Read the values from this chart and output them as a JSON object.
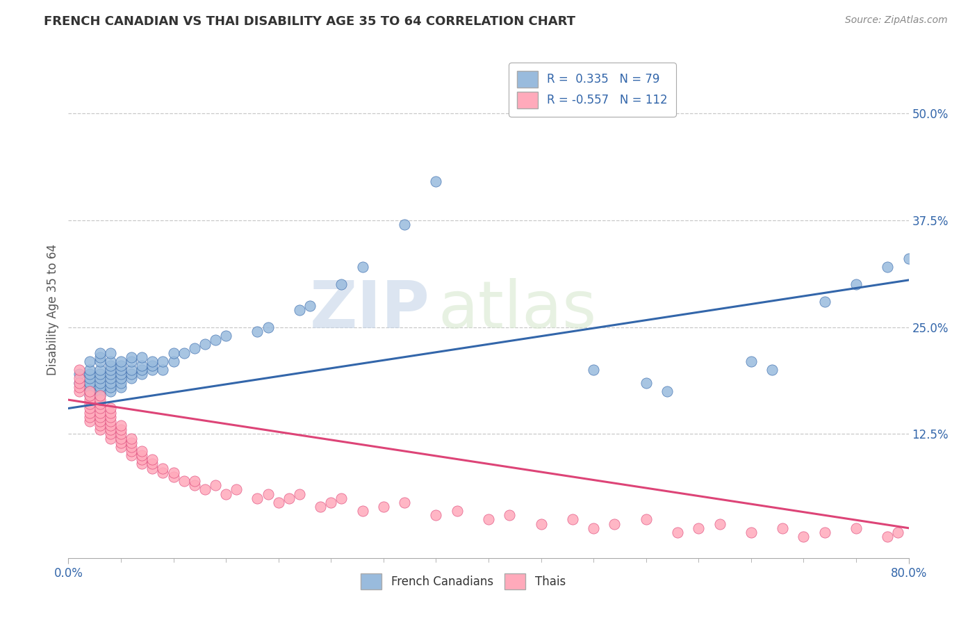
{
  "title": "FRENCH CANADIAN VS THAI DISABILITY AGE 35 TO 64 CORRELATION CHART",
  "source": "Source: ZipAtlas.com",
  "ylabel": "Disability Age 35 to 64",
  "xlim": [
    0.0,
    0.8
  ],
  "ylim": [
    -0.02,
    0.56
  ],
  "yticks": [
    0.125,
    0.25,
    0.375,
    0.5
  ],
  "ytick_labels": [
    "12.5%",
    "25.0%",
    "37.5%",
    "50.0%"
  ],
  "xtick_labels": [
    "0.0%",
    "80.0%"
  ],
  "xtick_pos": [
    0.0,
    0.8
  ],
  "grid_color": "#c8c8c8",
  "background_color": "#ffffff",
  "watermark": "ZIPatlas",
  "legend_R1": "0.335",
  "legend_N1": "79",
  "legend_R2": "-0.557",
  "legend_N2": "112",
  "blue_color": "#99bbdd",
  "pink_color": "#ffaabb",
  "blue_line_color": "#3366aa",
  "pink_line_color": "#dd4477",
  "tick_color": "#3366aa",
  "blue_scatter_x": [
    0.01,
    0.01,
    0.02,
    0.02,
    0.02,
    0.02,
    0.02,
    0.02,
    0.02,
    0.02,
    0.03,
    0.03,
    0.03,
    0.03,
    0.03,
    0.03,
    0.03,
    0.03,
    0.03,
    0.03,
    0.04,
    0.04,
    0.04,
    0.04,
    0.04,
    0.04,
    0.04,
    0.04,
    0.04,
    0.05,
    0.05,
    0.05,
    0.05,
    0.05,
    0.05,
    0.05,
    0.06,
    0.06,
    0.06,
    0.06,
    0.06,
    0.07,
    0.07,
    0.07,
    0.07,
    0.08,
    0.08,
    0.08,
    0.09,
    0.09,
    0.1,
    0.1,
    0.11,
    0.12,
    0.13,
    0.14,
    0.15,
    0.18,
    0.19,
    0.22,
    0.23,
    0.26,
    0.28,
    0.32,
    0.35,
    0.5,
    0.55,
    0.57,
    0.65,
    0.67,
    0.72,
    0.75,
    0.78,
    0.8
  ],
  "blue_scatter_y": [
    0.185,
    0.195,
    0.17,
    0.175,
    0.18,
    0.185,
    0.19,
    0.195,
    0.2,
    0.21,
    0.17,
    0.175,
    0.18,
    0.185,
    0.19,
    0.195,
    0.2,
    0.21,
    0.215,
    0.22,
    0.175,
    0.18,
    0.185,
    0.19,
    0.195,
    0.2,
    0.205,
    0.21,
    0.22,
    0.18,
    0.185,
    0.19,
    0.195,
    0.2,
    0.205,
    0.21,
    0.19,
    0.195,
    0.2,
    0.21,
    0.215,
    0.195,
    0.2,
    0.205,
    0.215,
    0.2,
    0.205,
    0.21,
    0.2,
    0.21,
    0.21,
    0.22,
    0.22,
    0.225,
    0.23,
    0.235,
    0.24,
    0.245,
    0.25,
    0.27,
    0.275,
    0.3,
    0.32,
    0.37,
    0.42,
    0.2,
    0.185,
    0.175,
    0.21,
    0.2,
    0.28,
    0.3,
    0.32,
    0.33
  ],
  "pink_scatter_x": [
    0.01,
    0.01,
    0.01,
    0.01,
    0.01,
    0.02,
    0.02,
    0.02,
    0.02,
    0.02,
    0.02,
    0.02,
    0.02,
    0.03,
    0.03,
    0.03,
    0.03,
    0.03,
    0.03,
    0.03,
    0.03,
    0.03,
    0.04,
    0.04,
    0.04,
    0.04,
    0.04,
    0.04,
    0.04,
    0.04,
    0.05,
    0.05,
    0.05,
    0.05,
    0.05,
    0.05,
    0.06,
    0.06,
    0.06,
    0.06,
    0.06,
    0.07,
    0.07,
    0.07,
    0.07,
    0.08,
    0.08,
    0.08,
    0.09,
    0.09,
    0.1,
    0.1,
    0.11,
    0.12,
    0.12,
    0.13,
    0.14,
    0.15,
    0.16,
    0.18,
    0.19,
    0.2,
    0.21,
    0.22,
    0.24,
    0.25,
    0.26,
    0.28,
    0.3,
    0.32,
    0.35,
    0.37,
    0.4,
    0.42,
    0.45,
    0.48,
    0.5,
    0.52,
    0.55,
    0.58,
    0.6,
    0.62,
    0.65,
    0.68,
    0.7,
    0.72,
    0.75,
    0.78,
    0.79
  ],
  "pink_scatter_y": [
    0.175,
    0.18,
    0.185,
    0.19,
    0.2,
    0.14,
    0.145,
    0.15,
    0.155,
    0.16,
    0.165,
    0.17,
    0.175,
    0.13,
    0.135,
    0.14,
    0.145,
    0.15,
    0.155,
    0.16,
    0.165,
    0.17,
    0.12,
    0.125,
    0.13,
    0.135,
    0.14,
    0.145,
    0.15,
    0.155,
    0.11,
    0.115,
    0.12,
    0.125,
    0.13,
    0.135,
    0.1,
    0.105,
    0.11,
    0.115,
    0.12,
    0.09,
    0.095,
    0.1,
    0.105,
    0.085,
    0.09,
    0.095,
    0.08,
    0.085,
    0.075,
    0.08,
    0.07,
    0.065,
    0.07,
    0.06,
    0.065,
    0.055,
    0.06,
    0.05,
    0.055,
    0.045,
    0.05,
    0.055,
    0.04,
    0.045,
    0.05,
    0.035,
    0.04,
    0.045,
    0.03,
    0.035,
    0.025,
    0.03,
    0.02,
    0.025,
    0.015,
    0.02,
    0.025,
    0.01,
    0.015,
    0.02,
    0.01,
    0.015,
    0.005,
    0.01,
    0.015,
    0.005,
    0.01
  ],
  "blue_trend_x": [
    0.0,
    0.8
  ],
  "blue_trend_y": [
    0.155,
    0.305
  ],
  "pink_trend_x": [
    0.0,
    0.8
  ],
  "pink_trend_y": [
    0.165,
    0.015
  ]
}
